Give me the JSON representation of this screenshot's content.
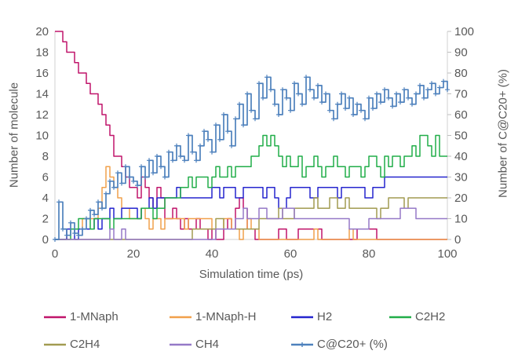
{
  "chart_data": {
    "type": "line",
    "title": "",
    "xlabel": "Simulation time (ps)",
    "ylabel_left": "Number of molecule",
    "ylabel_right": "Number of C@C20+ (%)",
    "xlim": [
      0,
      100
    ],
    "ylim_left": [
      0,
      20
    ],
    "ylim_right": [
      0,
      100
    ],
    "x_ticks": [
      0,
      20,
      40,
      60,
      80,
      100
    ],
    "y_left_ticks": [
      0,
      2,
      4,
      6,
      8,
      10,
      12,
      14,
      16,
      18,
      20
    ],
    "y_right_ticks": [
      0,
      10,
      20,
      30,
      40,
      50,
      60,
      70,
      80,
      90,
      100
    ],
    "grid": false,
    "legend_position": "bottom",
    "x_step": 1,
    "axis_text_color": "#595959",
    "axis_line_color": "#D9D9D9",
    "series": [
      {
        "name": "1-MNaph",
        "color": "#C0156B",
        "axis": "left",
        "marker": "none",
        "values": [
          20,
          20,
          19,
          18,
          18,
          17,
          16,
          16,
          15,
          14,
          14,
          13,
          12,
          11,
          10,
          8,
          8,
          7,
          6,
          5,
          5,
          4,
          6,
          5,
          4,
          3,
          5,
          4,
          2,
          2,
          3,
          2,
          1,
          2,
          1,
          1,
          2,
          1,
          1,
          0,
          1,
          0,
          0,
          1,
          2,
          1,
          3,
          4,
          3,
          1,
          1,
          0,
          0,
          0,
          0,
          0,
          0,
          1,
          1,
          0,
          0,
          0,
          1,
          1,
          1,
          1,
          1,
          1,
          0,
          0,
          0,
          0,
          0,
          0,
          0,
          0,
          0,
          1,
          1,
          1,
          1,
          1,
          0,
          0,
          0,
          0,
          0,
          0,
          0,
          0,
          0,
          0,
          0,
          0,
          0,
          0,
          0,
          0,
          0,
          0,
          0
        ]
      },
      {
        "name": "1-MNaph-H",
        "color": "#F1A04B",
        "axis": "left",
        "marker": "none",
        "values": [
          0,
          0,
          0,
          1,
          1,
          1,
          1,
          2,
          2,
          2,
          2,
          3,
          5,
          7,
          6,
          5,
          4,
          3,
          3,
          2,
          2,
          2,
          3,
          2,
          1,
          2,
          2,
          1,
          2,
          2,
          2,
          2,
          2,
          1,
          2,
          2,
          2,
          2,
          2,
          2,
          1,
          1,
          1,
          2,
          2,
          1,
          1,
          0,
          1,
          2,
          1,
          1,
          0,
          0,
          0,
          0,
          0,
          0,
          0,
          0,
          0,
          0,
          0,
          0,
          0,
          0,
          1,
          0,
          0,
          0,
          0,
          0,
          0,
          0,
          0,
          1,
          0,
          0,
          0,
          0,
          0,
          0,
          0,
          0,
          0,
          0,
          0,
          0,
          0,
          0,
          0,
          0,
          0,
          0,
          0,
          0,
          0,
          0,
          0,
          0,
          0
        ]
      },
      {
        "name": "H2",
        "color": "#2525CE",
        "axis": "left",
        "marker": "none",
        "values": [
          0,
          0,
          0,
          1,
          1,
          0,
          1,
          1,
          1,
          1,
          2,
          1,
          2,
          2,
          3,
          2,
          2,
          3,
          3,
          3,
          3,
          2,
          3,
          3,
          4,
          3,
          4,
          4,
          4,
          4,
          4,
          5,
          4,
          4,
          4,
          4,
          4,
          4,
          4,
          4,
          5,
          5,
          4,
          5,
          5,
          5,
          4,
          4,
          5,
          5,
          5,
          5,
          5,
          4,
          5,
          5,
          4,
          3,
          3,
          4,
          5,
          5,
          5,
          5,
          5,
          4,
          4,
          5,
          5,
          5,
          5,
          5,
          4,
          5,
          5,
          5,
          5,
          5,
          5,
          4,
          4,
          5,
          5,
          5,
          6,
          6,
          6,
          6,
          6,
          6,
          6,
          6,
          6,
          6,
          6,
          6,
          6,
          6,
          6,
          6,
          6
        ]
      },
      {
        "name": "C2H2",
        "color": "#21AD49",
        "axis": "left",
        "marker": "none",
        "values": [
          0,
          0,
          0,
          0,
          1,
          1,
          2,
          2,
          2,
          1,
          2,
          2,
          2,
          2,
          1,
          2,
          2,
          2,
          2,
          2,
          2,
          2,
          3,
          3,
          3,
          2,
          3,
          3,
          4,
          4,
          4,
          4,
          5,
          5,
          6,
          5,
          6,
          6,
          6,
          5,
          6,
          7,
          6,
          6,
          7,
          6,
          7,
          7,
          7,
          7,
          8,
          8,
          9,
          10,
          9,
          10,
          9,
          8,
          7,
          8,
          7,
          7,
          8,
          6,
          7,
          7,
          8,
          7,
          6,
          7,
          7,
          8,
          7,
          7,
          6,
          7,
          7,
          7,
          6,
          7,
          8,
          8,
          7,
          6,
          8,
          7,
          8,
          8,
          7,
          8,
          8,
          9,
          8,
          10,
          10,
          9,
          8,
          10,
          8,
          8,
          8
        ]
      },
      {
        "name": "C2H4",
        "color": "#A29B51",
        "axis": "left",
        "marker": "none",
        "values": [
          0,
          0,
          0,
          0,
          0,
          0,
          0,
          0,
          0,
          0,
          0,
          0,
          0,
          0,
          0,
          0,
          0,
          0,
          0,
          0,
          0,
          0,
          0,
          0,
          0,
          0,
          0,
          0,
          0,
          0,
          0,
          0,
          0,
          0,
          0,
          1,
          1,
          1,
          1,
          1,
          1,
          2,
          2,
          1,
          1,
          1,
          1,
          1,
          1,
          1,
          1,
          1,
          2,
          2,
          2,
          2,
          2,
          3,
          2,
          2,
          2,
          3,
          3,
          3,
          3,
          3,
          4,
          3,
          3,
          3,
          4,
          4,
          3,
          3,
          4,
          3,
          3,
          3,
          3,
          3,
          3,
          3,
          2,
          3,
          3,
          4,
          4,
          4,
          4,
          3,
          4,
          4,
          4,
          4,
          4,
          4,
          4,
          4,
          4,
          4,
          4
        ]
      },
      {
        "name": "CH4",
        "color": "#9579C7",
        "axis": "left",
        "marker": "none",
        "values": [
          0,
          0,
          0,
          0,
          0,
          0,
          0,
          0,
          0,
          0,
          0,
          0,
          0,
          0,
          1,
          0,
          0,
          1,
          0,
          0,
          0,
          0,
          0,
          0,
          0,
          0,
          0,
          0,
          0,
          0,
          0,
          0,
          0,
          0,
          0,
          0,
          0,
          0,
          0,
          0,
          0,
          1,
          1,
          1,
          1,
          1,
          2,
          2,
          3,
          2,
          2,
          2,
          3,
          3,
          2,
          2,
          2,
          2,
          3,
          3,
          3,
          2,
          2,
          2,
          2,
          2,
          2,
          2,
          2,
          2,
          2,
          2,
          2,
          2,
          2,
          1,
          1,
          1,
          1,
          1,
          2,
          2,
          2,
          2,
          2,
          2,
          2,
          2,
          3,
          3,
          3,
          3,
          2,
          2,
          2,
          2,
          2,
          2,
          2,
          2,
          2
        ]
      },
      {
        "name": "C@C20+ (%)",
        "color": "#4E81BD",
        "axis": "right",
        "marker": "plus",
        "values": [
          0,
          18,
          5,
          2,
          8,
          3,
          2,
          5,
          10,
          14,
          12,
          18,
          15,
          22,
          28,
          25,
          32,
          27,
          35,
          30,
          28,
          26,
          35,
          30,
          38,
          32,
          40,
          35,
          30,
          42,
          38,
          45,
          40,
          38,
          50,
          42,
          38,
          45,
          52,
          48,
          42,
          55,
          48,
          60,
          52,
          45,
          58,
          65,
          55,
          70,
          62,
          58,
          75,
          68,
          78,
          72,
          65,
          60,
          72,
          68,
          62,
          75,
          70,
          65,
          78,
          72,
          68,
          74,
          66,
          70,
          62,
          58,
          65,
          70,
          63,
          68,
          60,
          65,
          62,
          58,
          68,
          63,
          70,
          66,
          72,
          68,
          64,
          70,
          66,
          72,
          68,
          65,
          70,
          74,
          68,
          72,
          75,
          70,
          73,
          76,
          72
        ]
      }
    ]
  },
  "legend": {
    "rows": [
      [
        "1-MNaph",
        "1-MNaph-H",
        "H2",
        "C2H2"
      ],
      [
        "C2H4",
        "CH4",
        "C@C20+ (%)"
      ]
    ]
  }
}
